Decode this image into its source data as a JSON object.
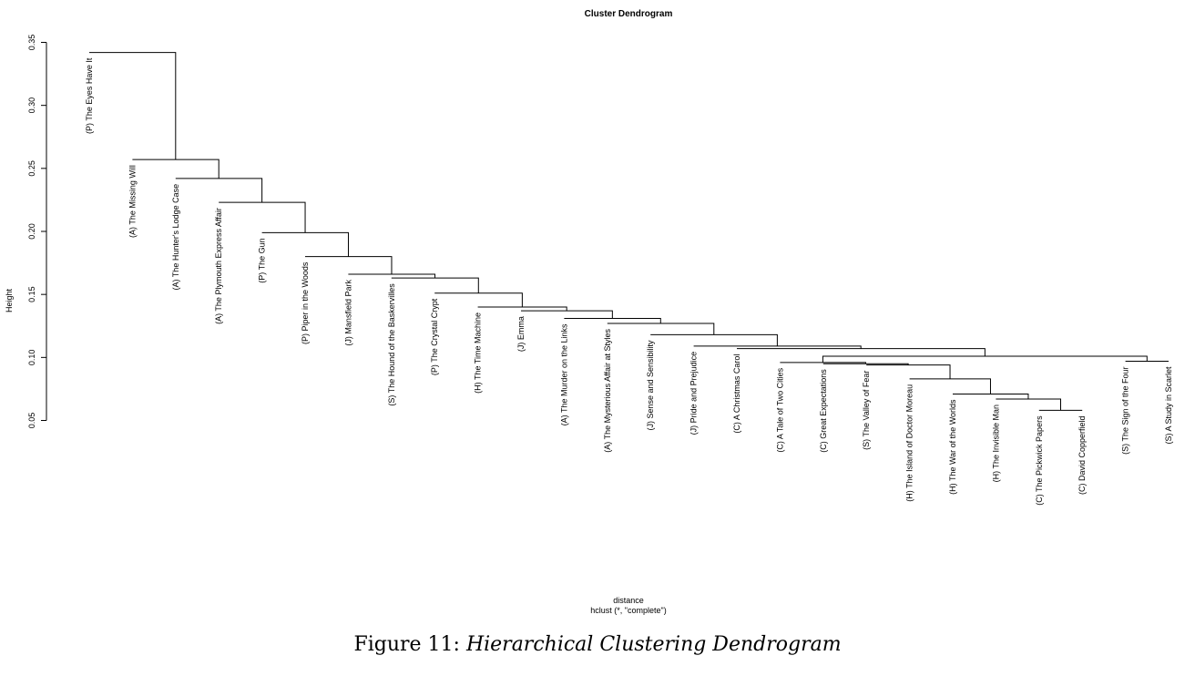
{
  "chart_data": {
    "type": "dendrogram",
    "title": "Cluster Dendrogram",
    "xlabel": "distance",
    "sub": "hclust (*, \"complete\")",
    "ylabel": "Height",
    "ylim": [
      0.05,
      0.35
    ],
    "yticks": [
      "0.05",
      "0.10",
      "0.15",
      "0.20",
      "0.25",
      "0.30",
      "0.35"
    ],
    "leaves": [
      {
        "label": "(P) The Eyes Have It",
        "top": 0.342
      },
      {
        "label": "(A) The Missing Will",
        "top": 0.257
      },
      {
        "label": "(A) The Hunter's Lodge Case",
        "top": 0.242
      },
      {
        "label": "(A) The Plymouth Express Affair",
        "top": 0.223
      },
      {
        "label": "(P) The Gun",
        "top": 0.199
      },
      {
        "label": "(P) Piper in the Woods",
        "top": 0.18
      },
      {
        "label": "(J) Mansfield Park",
        "top": 0.166
      },
      {
        "label": "(S) The Hound of the Baskervilles",
        "top": 0.163
      },
      {
        "label": "(P) The Crystal Crypt",
        "top": 0.151
      },
      {
        "label": "(H) The Time Machine",
        "top": 0.14
      },
      {
        "label": "(J) Emma",
        "top": 0.137
      },
      {
        "label": "(A) The Murder on the Links",
        "top": 0.131
      },
      {
        "label": "(A) The Mysterious Affair at Styles",
        "top": 0.127
      },
      {
        "label": "(J) Sense and Sensibility",
        "top": 0.118
      },
      {
        "label": "(J) Pride and Prejudice",
        "top": 0.109
      },
      {
        "label": "(C) A Christmas Carol",
        "top": 0.107
      },
      {
        "label": "(C) A Tale of Two Cities",
        "top": 0.096
      },
      {
        "label": "(C) Great Expectations",
        "top": 0.095
      },
      {
        "label": "(S) The Valley of Fear",
        "top": 0.094
      },
      {
        "label": "(H) The Island of Doctor Moreau",
        "top": 0.083
      },
      {
        "label": "(H) The War of the Worlds",
        "top": 0.071
      },
      {
        "label": "(H) The Invisible Man",
        "top": 0.067
      },
      {
        "label": "(C) The Pickwick Papers",
        "top": 0.058
      },
      {
        "label": "(C) David Copperfield",
        "top": 0.058
      },
      {
        "label": "(S) The Sign of the Four",
        "top": 0.097
      },
      {
        "label": "(S) A Study in Scarlet",
        "top": 0.097
      }
    ],
    "merges": [
      {
        "a": 22,
        "b": 23,
        "h": 0.058
      },
      {
        "a": 21,
        "b": "m0",
        "h": 0.067
      },
      {
        "a": 20,
        "b": "m1",
        "h": 0.071
      },
      {
        "a": 19,
        "b": "m2",
        "h": 0.083
      },
      {
        "a": 18,
        "b": "m3",
        "h": 0.094
      },
      {
        "a": 17,
        "b": "m4",
        "h": 0.095
      },
      {
        "a": 16,
        "b": "m5",
        "h": 0.096
      },
      {
        "a": 24,
        "b": 25,
        "h": 0.097
      },
      {
        "a": "m6",
        "b": "m7",
        "h": 0.101
      },
      {
        "a": 15,
        "b": "m8",
        "h": 0.107
      },
      {
        "a": 14,
        "b": "m9",
        "h": 0.109
      },
      {
        "a": 13,
        "b": "m10",
        "h": 0.118
      },
      {
        "a": 12,
        "b": "m11",
        "h": 0.127
      },
      {
        "a": 11,
        "b": "m12",
        "h": 0.131
      },
      {
        "a": 10,
        "b": "m13",
        "h": 0.137
      },
      {
        "a": 9,
        "b": "m14",
        "h": 0.14
      },
      {
        "a": 8,
        "b": "m15",
        "h": 0.151
      },
      {
        "a": 7,
        "b": "m16",
        "h": 0.163
      },
      {
        "a": 6,
        "b": "m17",
        "h": 0.166
      },
      {
        "a": 5,
        "b": "m18",
        "h": 0.18
      },
      {
        "a": 4,
        "b": "m19",
        "h": 0.199
      },
      {
        "a": 3,
        "b": "m20",
        "h": 0.223
      },
      {
        "a": 2,
        "b": "m21",
        "h": 0.242
      },
      {
        "a": 1,
        "b": "m22",
        "h": 0.257
      },
      {
        "a": 0,
        "b": "m23",
        "h": 0.342
      }
    ]
  },
  "caption": {
    "prefix": "Figure 11:",
    "text": "Hierarchical Clustering Dendrogram"
  }
}
